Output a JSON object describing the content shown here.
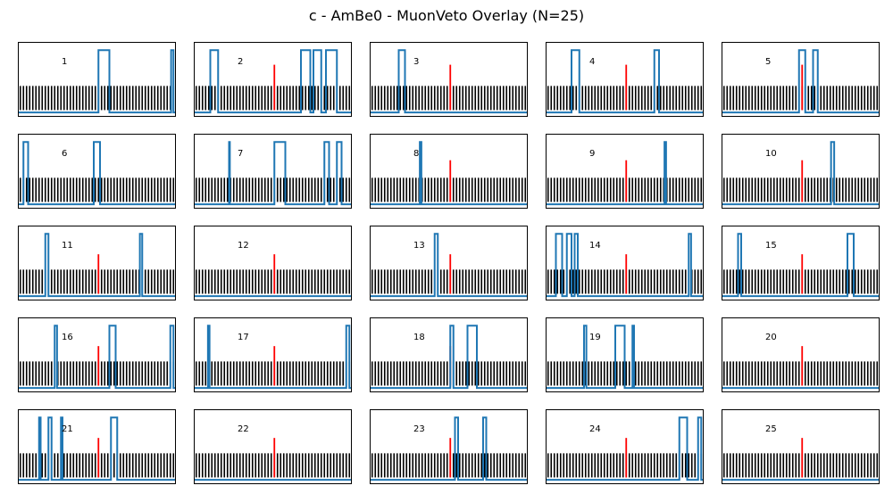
{
  "figure": {
    "title": "c - AmBe0 - MuonVeto Overlay (N=25)"
  },
  "colors": {
    "trace": "#1f77b4",
    "ticks": "#000000",
    "marker": "#ff0000",
    "frame": "#000000"
  },
  "chart_data": {
    "type": "line",
    "n_panels": 25,
    "grid": false,
    "layout": "5x5 grid of small multiples",
    "x_range": [
      0,
      1
    ],
    "y_range": [
      0,
      1
    ],
    "description": "Each panel: a dense row of black vertical tick marks (pulse train), a red vertical marker near the center, and a blue MuonVeto trace with rectangular pulses.",
    "tick_train": {
      "count": 50,
      "height": 0.33
    },
    "baseline": 0.08,
    "panels": [
      {
        "label": "1",
        "marker": null,
        "pulses": [
          [
            0.51,
            0.58
          ],
          [
            0.975,
            0.99
          ]
        ]
      },
      {
        "label": "2",
        "marker": {
          "x": 0.51,
          "h": 0.7
        },
        "pulses": [
          [
            0.1,
            0.15
          ],
          [
            0.68,
            0.74
          ],
          [
            0.76,
            0.81
          ],
          [
            0.84,
            0.91
          ]
        ]
      },
      {
        "label": "3",
        "marker": {
          "x": 0.51,
          "h": 0.7
        },
        "pulses": [
          [
            0.18,
            0.22
          ]
        ]
      },
      {
        "label": "4",
        "marker": {
          "x": 0.51,
          "h": 0.7
        },
        "pulses": [
          [
            0.16,
            0.21
          ],
          [
            0.69,
            0.72
          ]
        ]
      },
      {
        "label": "5",
        "marker": {
          "x": 0.51,
          "h": 0.7
        },
        "pulses": [
          [
            0.49,
            0.53
          ],
          [
            0.58,
            0.61
          ]
        ]
      },
      {
        "label": "6",
        "marker": null,
        "pulses": [
          [
            0.03,
            0.06
          ],
          [
            0.48,
            0.52
          ]
        ]
      },
      {
        "label": "7",
        "marker": null,
        "pulses": [
          [
            0.22,
            0.225
          ],
          [
            0.51,
            0.58
          ],
          [
            0.83,
            0.86
          ],
          [
            0.91,
            0.94
          ]
        ]
      },
      {
        "label": "8",
        "marker": {
          "x": 0.51,
          "h": 0.65
        },
        "pulses": [
          [
            0.315,
            0.325
          ]
        ]
      },
      {
        "label": "9",
        "marker": {
          "x": 0.51,
          "h": 0.65
        },
        "pulses": [
          [
            0.755,
            0.765
          ]
        ]
      },
      {
        "label": "10",
        "marker": {
          "x": 0.51,
          "h": 0.65
        },
        "pulses": [
          [
            0.695,
            0.715
          ]
        ]
      },
      {
        "label": "11",
        "marker": {
          "x": 0.51,
          "h": 0.62
        },
        "pulses": [
          [
            0.17,
            0.19
          ],
          [
            0.775,
            0.79
          ]
        ]
      },
      {
        "label": "12",
        "marker": {
          "x": 0.51,
          "h": 0.62
        },
        "pulses": []
      },
      {
        "label": "13",
        "marker": {
          "x": 0.51,
          "h": 0.62
        },
        "pulses": [
          [
            0.41,
            0.43
          ]
        ]
      },
      {
        "label": "14",
        "marker": {
          "x": 0.51,
          "h": 0.62
        },
        "pulses": [
          [
            0.06,
            0.1
          ],
          [
            0.13,
            0.16
          ],
          [
            0.18,
            0.2
          ],
          [
            0.91,
            0.925
          ]
        ]
      },
      {
        "label": "15",
        "marker": {
          "x": 0.51,
          "h": 0.62
        },
        "pulses": [
          [
            0.1,
            0.12
          ],
          [
            0.8,
            0.84
          ]
        ]
      },
      {
        "label": "16",
        "marker": {
          "x": 0.51,
          "h": 0.62
        },
        "pulses": [
          [
            0.23,
            0.245
          ],
          [
            0.58,
            0.62
          ],
          [
            0.97,
            0.99
          ]
        ]
      },
      {
        "label": "17",
        "marker": {
          "x": 0.51,
          "h": 0.62
        },
        "pulses": [
          [
            0.085,
            0.095
          ],
          [
            0.97,
            0.99
          ]
        ]
      },
      {
        "label": "18",
        "marker": {
          "x": 0.51,
          "h": 0.62
        },
        "pulses": [
          [
            0.51,
            0.53
          ],
          [
            0.62,
            0.68
          ]
        ]
      },
      {
        "label": "19",
        "marker": null,
        "pulses": [
          [
            0.24,
            0.255
          ],
          [
            0.44,
            0.5
          ],
          [
            0.55,
            0.56
          ]
        ]
      },
      {
        "label": "20",
        "marker": {
          "x": 0.51,
          "h": 0.62
        },
        "pulses": []
      },
      {
        "label": "21",
        "marker": {
          "x": 0.51,
          "h": 0.62
        },
        "pulses": [
          [
            0.13,
            0.14
          ],
          [
            0.19,
            0.21
          ],
          [
            0.27,
            0.28
          ],
          [
            0.59,
            0.63
          ]
        ]
      },
      {
        "label": "22",
        "marker": {
          "x": 0.51,
          "h": 0.62
        },
        "pulses": []
      },
      {
        "label": "23",
        "marker": {
          "x": 0.51,
          "h": 0.62
        },
        "pulses": [
          [
            0.54,
            0.56
          ],
          [
            0.72,
            0.74
          ]
        ]
      },
      {
        "label": "24",
        "marker": {
          "x": 0.51,
          "h": 0.62
        },
        "pulses": [
          [
            0.85,
            0.9
          ],
          [
            0.97,
            0.99
          ]
        ]
      },
      {
        "label": "25",
        "marker": {
          "x": 0.51,
          "h": 0.62
        },
        "pulses": []
      }
    ]
  }
}
